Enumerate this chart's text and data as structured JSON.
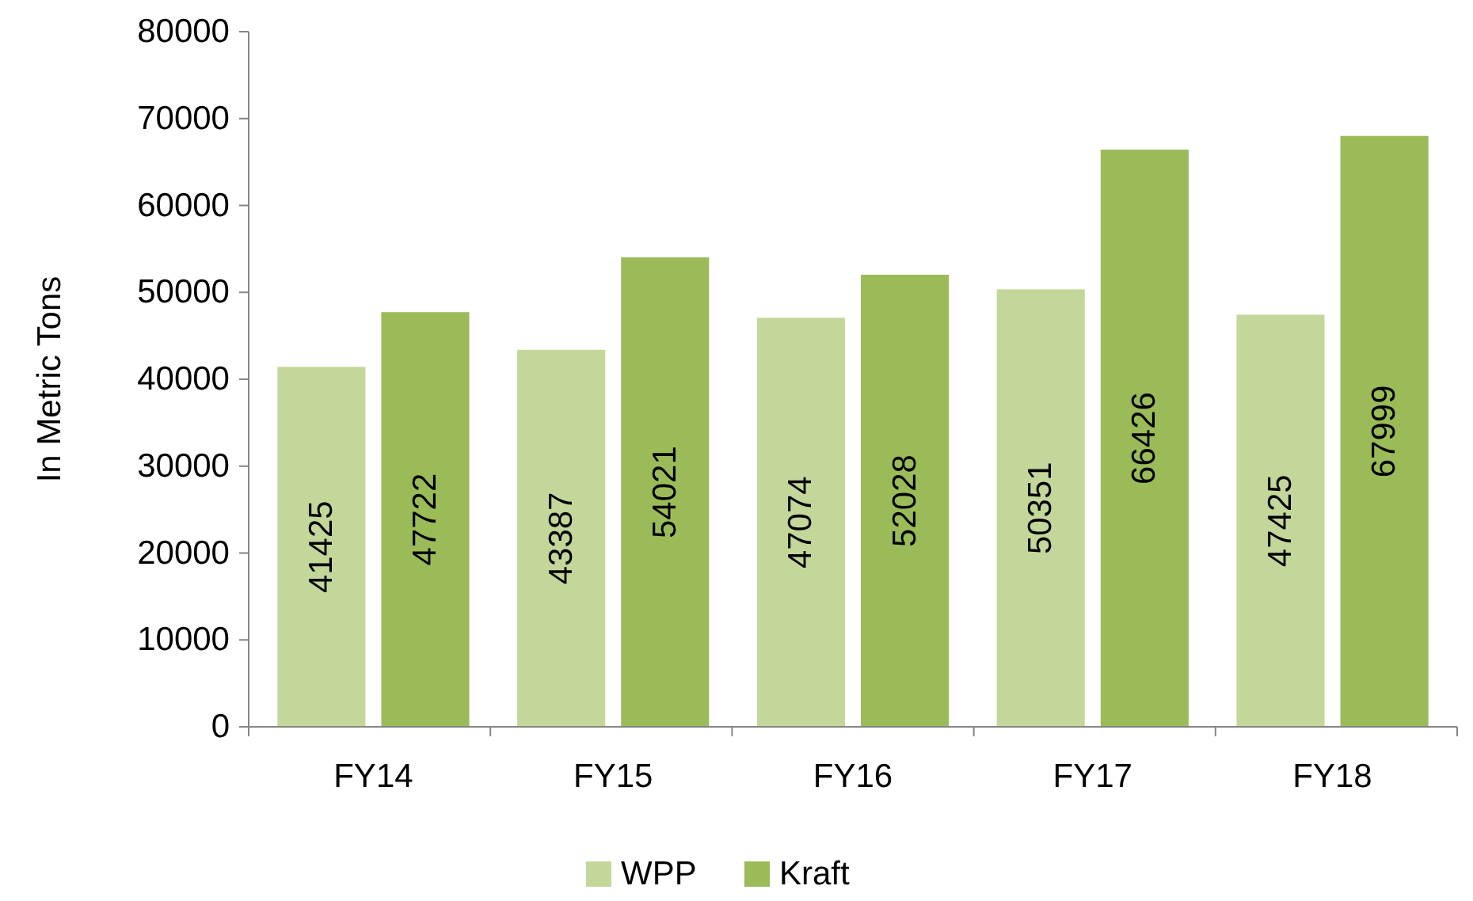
{
  "chart_data": {
    "type": "bar",
    "ylabel": "In Metric Tons",
    "categories": [
      "FY14",
      "FY15",
      "FY16",
      "FY17",
      "FY18"
    ],
    "series": [
      {
        "name": "WPP",
        "color": "#c4d79b",
        "values": [
          41425,
          43387,
          47074,
          50351,
          47425
        ]
      },
      {
        "name": "Kraft",
        "color": "#9bbb59",
        "values": [
          47722,
          54021,
          52028,
          66426,
          67999
        ]
      }
    ],
    "ylim": [
      0,
      80000
    ],
    "yticks": [
      0,
      10000,
      20000,
      30000,
      40000,
      50000,
      60000,
      70000,
      80000
    ],
    "data_labels": true,
    "legend": "bottom",
    "grid": false
  }
}
